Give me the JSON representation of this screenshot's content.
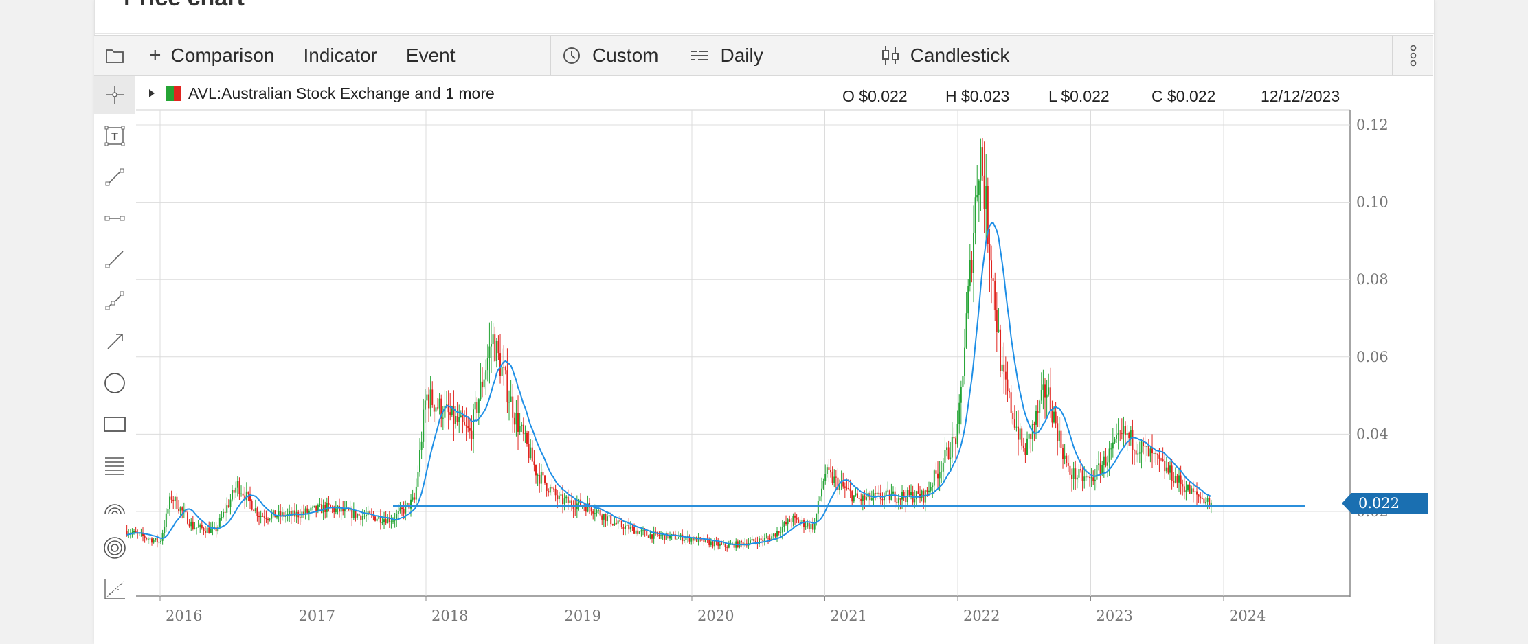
{
  "panel": {
    "title": "Price chart"
  },
  "toolbar": {
    "comparison": "Comparison",
    "indicator": "Indicator",
    "event": "Event",
    "custom": "Custom",
    "daily": "Daily",
    "candlestick": "Candlestick"
  },
  "legend": {
    "symbol": "AVL:Australian Stock Exchange and 1 more",
    "open": "O $0.022",
    "high": "H $0.023",
    "low": "L $0.022",
    "close": "C $0.022",
    "date": "12/12/2023"
  },
  "price_tag": "0.022",
  "left_tools": [
    "crosshair-icon",
    "text-box-icon",
    "line-segment-icon",
    "horizontal-segment-icon",
    "ray-line-icon",
    "polyline-icon",
    "arrow-line-icon",
    "circle-icon",
    "rectangle-icon",
    "fib-levels-icon",
    "arc-icon",
    "concentric-circles-icon",
    "scatter-icon"
  ],
  "colors": {
    "up": "#25a435",
    "down": "#e0251f",
    "ma": "#1f8fe6",
    "hline": "#2b8fdb",
    "tag": "#1a6fb1"
  },
  "chart_data": {
    "type": "candlestick",
    "x_ticks": [
      "2016",
      "2017",
      "2018",
      "2019",
      "2020",
      "2021",
      "2022",
      "2023",
      "2024"
    ],
    "y_ticks": [
      "0.12",
      "0.10",
      "0.08",
      "0.06",
      "0.04",
      "0.02"
    ],
    "ylim": [
      0,
      0.125
    ],
    "horizontal_line": 0.022,
    "grid": true,
    "close_series": [
      {
        "date": "2015-10",
        "v": 0.015
      },
      {
        "date": "2016-01",
        "v": 0.012
      },
      {
        "date": "2016-02",
        "v": 0.024
      },
      {
        "date": "2016-04",
        "v": 0.016
      },
      {
        "date": "2016-06",
        "v": 0.015
      },
      {
        "date": "2016-08",
        "v": 0.027
      },
      {
        "date": "2016-10",
        "v": 0.019
      },
      {
        "date": "2017-01",
        "v": 0.019
      },
      {
        "date": "2017-04",
        "v": 0.021
      },
      {
        "date": "2017-07",
        "v": 0.019
      },
      {
        "date": "2017-10",
        "v": 0.018
      },
      {
        "date": "2017-12",
        "v": 0.023
      },
      {
        "date": "2018-01",
        "v": 0.05
      },
      {
        "date": "2018-03",
        "v": 0.045
      },
      {
        "date": "2018-05",
        "v": 0.04
      },
      {
        "date": "2018-07",
        "v": 0.065
      },
      {
        "date": "2018-09",
        "v": 0.045
      },
      {
        "date": "2018-11",
        "v": 0.03
      },
      {
        "date": "2019-01",
        "v": 0.023
      },
      {
        "date": "2019-04",
        "v": 0.021
      },
      {
        "date": "2019-06",
        "v": 0.017
      },
      {
        "date": "2019-09",
        "v": 0.014
      },
      {
        "date": "2020-01",
        "v": 0.013
      },
      {
        "date": "2020-04",
        "v": 0.011
      },
      {
        "date": "2020-08",
        "v": 0.013
      },
      {
        "date": "2020-10",
        "v": 0.018
      },
      {
        "date": "2020-12",
        "v": 0.016
      },
      {
        "date": "2021-01",
        "v": 0.03
      },
      {
        "date": "2021-04",
        "v": 0.023
      },
      {
        "date": "2021-07",
        "v": 0.024
      },
      {
        "date": "2021-10",
        "v": 0.024
      },
      {
        "date": "2022-01",
        "v": 0.04
      },
      {
        "date": "2022-03",
        "v": 0.115
      },
      {
        "date": "2022-05",
        "v": 0.055
      },
      {
        "date": "2022-07",
        "v": 0.035
      },
      {
        "date": "2022-09",
        "v": 0.052
      },
      {
        "date": "2022-11",
        "v": 0.03
      },
      {
        "date": "2023-01",
        "v": 0.028
      },
      {
        "date": "2023-04",
        "v": 0.04
      },
      {
        "date": "2023-07",
        "v": 0.033
      },
      {
        "date": "2023-10",
        "v": 0.025
      },
      {
        "date": "2023-12",
        "v": 0.022
      }
    ]
  }
}
